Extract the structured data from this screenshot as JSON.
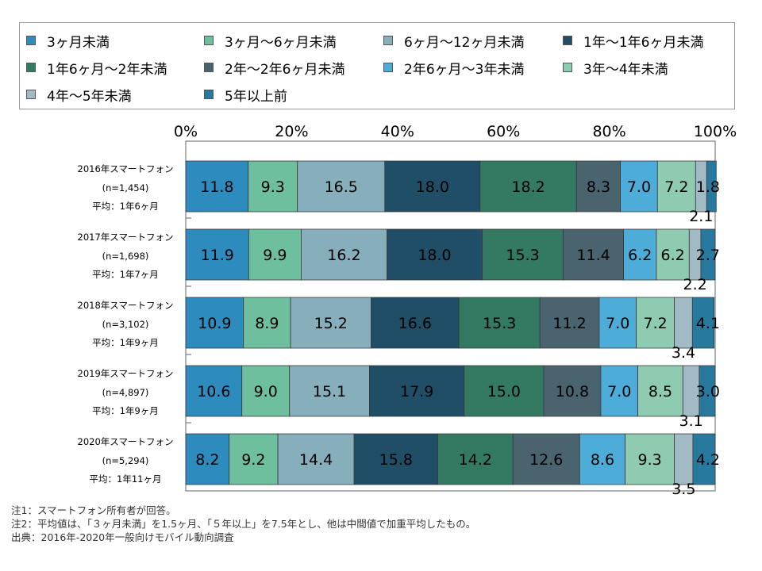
{
  "legend": [
    {
      "label": "3ヶ月未満",
      "color": "#2e8bbd"
    },
    {
      "label": "3ヶ月～6ヶ月未満",
      "color": "#6dbf9e"
    },
    {
      "label": "6ヶ月～12ヶ月未満",
      "color": "#86aebb"
    },
    {
      "label": "1年～1年6ヶ月未満",
      "color": "#1f4e66"
    },
    {
      "label": "1年6ヶ月～2年未満",
      "color": "#347a62"
    },
    {
      "label": "2年～2年6ヶ月未満",
      "color": "#49646f"
    },
    {
      "label": "2年6ヶ月～3年未満",
      "color": "#4eacd8"
    },
    {
      "label": "3年～4年未満",
      "color": "#8ecbb1"
    },
    {
      "label": "4年～5年未満",
      "color": "#a2bac4"
    },
    {
      "label": "5年以上前",
      "color": "#277a9e"
    }
  ],
  "notes": [
    "注1：スマートフォン所有者が回答。",
    "注2：平均値は、「３ヶ月未満」を1.5ヶ月、「５年以上」を7.5年とし、他は中間値で加重平均したもの。",
    "出典：2016年-2020年一般向けモバイル動向調査"
  ],
  "chart_data": {
    "type": "bar",
    "orientation": "horizontal",
    "stacked": true,
    "normalized": true,
    "xlim": [
      0,
      100
    ],
    "xticks": [
      "0%",
      "20%",
      "40%",
      "60%",
      "80%",
      "100%"
    ],
    "categories": [
      [
        "2016年スマートフォン",
        "(n=1,454)",
        "平均：1年6ヶ月"
      ],
      [
        "2017年スマートフォン",
        "(n=1,698)",
        "平均：1年7ヶ月"
      ],
      [
        "2018年スマートフォン",
        "(n=3,102)",
        "平均：1年9ヶ月"
      ],
      [
        "2019年スマートフォン",
        "(n=4,897)",
        "平均：1年9ヶ月"
      ],
      [
        "2020年スマートフォン",
        "(n=5,294)",
        "平均：1年11ヶ月"
      ]
    ],
    "series": [
      {
        "name": "3ヶ月未満",
        "values": [
          11.8,
          11.9,
          10.9,
          10.6,
          8.2
        ]
      },
      {
        "name": "3ヶ月～6ヶ月未満",
        "values": [
          9.3,
          9.9,
          8.9,
          9.0,
          9.2
        ]
      },
      {
        "name": "6ヶ月～12ヶ月未満",
        "values": [
          16.5,
          16.2,
          15.2,
          15.1,
          14.4
        ]
      },
      {
        "name": "1年～1年6ヶ月未満",
        "values": [
          18.0,
          18.0,
          16.6,
          17.9,
          15.8
        ]
      },
      {
        "name": "1年6ヶ月～2年未満",
        "values": [
          18.2,
          15.3,
          15.3,
          15.0,
          14.2
        ]
      },
      {
        "name": "2年～2年6ヶ月未満",
        "values": [
          8.3,
          11.4,
          11.2,
          10.8,
          12.6
        ]
      },
      {
        "name": "2年6ヶ月～3年未満",
        "values": [
          7.0,
          6.2,
          7.0,
          7.0,
          8.6
        ]
      },
      {
        "name": "3年～4年未満",
        "values": [
          7.2,
          6.2,
          7.2,
          8.5,
          9.3
        ]
      },
      {
        "name": "4年～5年未満",
        "values": [
          2.1,
          2.2,
          3.4,
          3.1,
          3.5
        ]
      },
      {
        "name": "5年以上前",
        "values": [
          1.8,
          2.7,
          4.1,
          3.0,
          4.2
        ]
      }
    ]
  }
}
